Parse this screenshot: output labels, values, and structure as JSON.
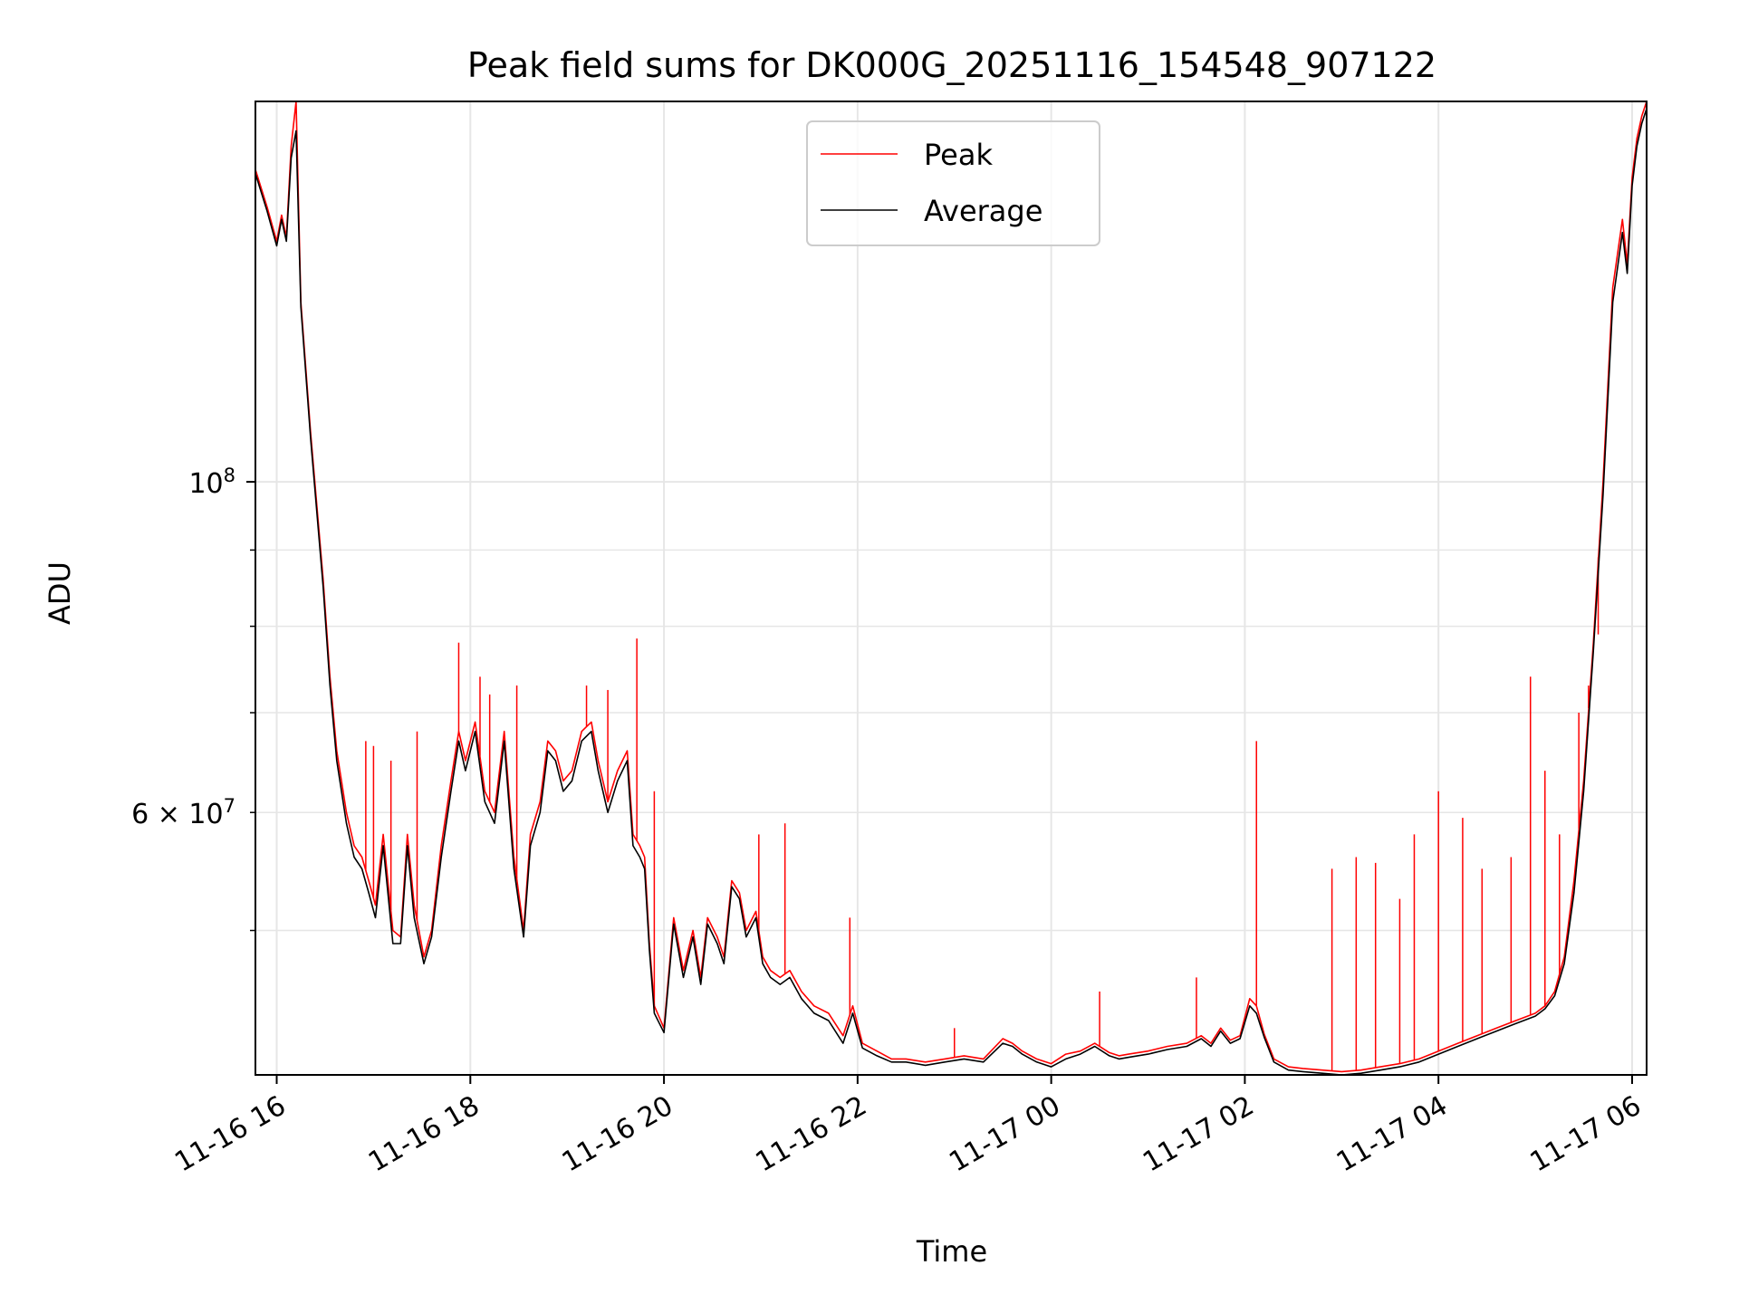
{
  "chart_data": {
    "type": "line",
    "title": "Peak field sums for DK000G_20251116_154548_907122",
    "xlabel": "Time",
    "ylabel": "ADU",
    "yscale": "log",
    "ylim": [
      40000000,
      180000000
    ],
    "xlim_hours": [
      15.78,
      30.15
    ],
    "grid": true,
    "legend_position": "top-center",
    "x_ticks": [
      {
        "value": 16,
        "label": "11-16 16"
      },
      {
        "value": 18,
        "label": "11-16 18"
      },
      {
        "value": 20,
        "label": "11-16 20"
      },
      {
        "value": 22,
        "label": "11-16 22"
      },
      {
        "value": 24,
        "label": "11-17 00"
      },
      {
        "value": 26,
        "label": "11-17 02"
      },
      {
        "value": 28,
        "label": "11-17 04"
      },
      {
        "value": 30,
        "label": "11-17 06"
      }
    ],
    "y_ticks_major": [
      {
        "value": 100000000,
        "base": "10",
        "exp": "8",
        "mant": ""
      }
    ],
    "y_ticks_minor": [
      {
        "value": 50000000,
        "label": ""
      },
      {
        "value": 60000000,
        "base": "10",
        "exp": "7",
        "mant": "6 × "
      },
      {
        "value": 70000000,
        "label": ""
      },
      {
        "value": 80000000,
        "label": ""
      },
      {
        "value": 90000000,
        "label": ""
      }
    ],
    "series": [
      {
        "name": "Peak",
        "color": "#ff0000",
        "x": [
          15.78,
          15.9,
          16.0,
          16.05,
          16.1,
          16.15,
          16.2,
          16.25,
          16.35,
          16.48,
          16.55,
          16.62,
          16.72,
          16.8,
          16.88,
          16.95,
          17.02,
          17.1,
          17.2,
          17.28,
          17.35,
          17.42,
          17.52,
          17.6,
          17.7,
          17.8,
          17.88,
          17.95,
          18.05,
          18.15,
          18.25,
          18.35,
          18.45,
          18.55,
          18.62,
          18.72,
          18.8,
          18.88,
          18.96,
          19.05,
          19.15,
          19.25,
          19.32,
          19.42,
          19.52,
          19.62,
          19.68,
          19.75,
          19.8,
          19.85,
          19.9,
          20.0,
          20.1,
          20.2,
          20.3,
          20.38,
          20.45,
          20.55,
          20.62,
          20.7,
          20.78,
          20.85,
          20.95,
          21.02,
          21.1,
          21.2,
          21.3,
          21.42,
          21.55,
          21.7,
          21.85,
          21.95,
          22.05,
          22.2,
          22.35,
          22.5,
          22.7,
          22.9,
          23.1,
          23.3,
          23.5,
          23.6,
          23.7,
          23.85,
          24.0,
          24.15,
          24.3,
          24.45,
          24.6,
          24.7,
          24.8,
          25.0,
          25.2,
          25.4,
          25.55,
          25.65,
          25.75,
          25.85,
          25.95,
          26.05,
          26.12,
          26.2,
          26.3,
          26.45,
          26.6,
          26.8,
          27.0,
          27.2,
          27.4,
          27.6,
          27.8,
          28.0,
          28.2,
          28.4,
          28.6,
          28.8,
          29.0,
          29.1,
          29.2,
          29.3,
          29.4,
          29.5,
          29.6,
          29.7,
          29.8,
          29.9,
          29.95,
          30.0,
          30.05,
          30.1,
          30.15
        ],
        "values": [
          162000000,
          153000000,
          145000000,
          151000000,
          146000000,
          168000000,
          180000000,
          132000000,
          108000000,
          86000000,
          74000000,
          66000000,
          60000000,
          57000000,
          56000000,
          54000000,
          52000000,
          58000000,
          50000000,
          49500000,
          58000000,
          52000000,
          48000000,
          50000000,
          57000000,
          63000000,
          68000000,
          65000000,
          69000000,
          62000000,
          60000000,
          68000000,
          56000000,
          50000000,
          58000000,
          61000000,
          67000000,
          66000000,
          63000000,
          64000000,
          68000000,
          69000000,
          65000000,
          61000000,
          64000000,
          66000000,
          58000000,
          57000000,
          56000000,
          49000000,
          44500000,
          43000000,
          51000000,
          47000000,
          50000000,
          46500000,
          51000000,
          49500000,
          48000000,
          54000000,
          53000000,
          50000000,
          51500000,
          48000000,
          47000000,
          46500000,
          47000000,
          45500000,
          44500000,
          44000000,
          42500000,
          44500000,
          42000000,
          41500000,
          41000000,
          41000000,
          40800000,
          41000000,
          41200000,
          41000000,
          42300000,
          42000000,
          41500000,
          41000000,
          40700000,
          41300000,
          41500000,
          42000000,
          41400000,
          41200000,
          41300000,
          41500000,
          41800000,
          42000000,
          42500000,
          42000000,
          43000000,
          42200000,
          42500000,
          45000000,
          44500000,
          42600000,
          41000000,
          40500000,
          40400000,
          40300000,
          40200000,
          40300000,
          40500000,
          40700000,
          41000000,
          41500000,
          42000000,
          42500000,
          43000000,
          43500000,
          44000000,
          44500000,
          45500000,
          48000000,
          54000000,
          63000000,
          78000000,
          100000000,
          135000000,
          150000000,
          140000000,
          160000000,
          170000000,
          176000000,
          180000000
        ]
      },
      {
        "name": "Average",
        "color": "#000000",
        "x": [
          15.78,
          15.9,
          16.0,
          16.05,
          16.1,
          16.15,
          16.2,
          16.25,
          16.35,
          16.48,
          16.55,
          16.62,
          16.72,
          16.8,
          16.88,
          16.95,
          17.02,
          17.1,
          17.2,
          17.28,
          17.35,
          17.42,
          17.52,
          17.6,
          17.7,
          17.8,
          17.88,
          17.95,
          18.05,
          18.15,
          18.25,
          18.35,
          18.45,
          18.55,
          18.62,
          18.72,
          18.8,
          18.88,
          18.96,
          19.05,
          19.15,
          19.25,
          19.32,
          19.42,
          19.52,
          19.62,
          19.68,
          19.75,
          19.8,
          19.85,
          19.9,
          20.0,
          20.1,
          20.2,
          20.3,
          20.38,
          20.45,
          20.55,
          20.62,
          20.7,
          20.78,
          20.85,
          20.95,
          21.02,
          21.1,
          21.2,
          21.3,
          21.42,
          21.55,
          21.7,
          21.85,
          21.95,
          22.05,
          22.2,
          22.35,
          22.5,
          22.7,
          22.9,
          23.1,
          23.3,
          23.5,
          23.6,
          23.7,
          23.85,
          24.0,
          24.15,
          24.3,
          24.45,
          24.6,
          24.7,
          24.8,
          25.0,
          25.2,
          25.4,
          25.55,
          25.65,
          25.75,
          25.85,
          25.95,
          26.05,
          26.12,
          26.2,
          26.3,
          26.45,
          26.6,
          26.8,
          27.0,
          27.2,
          27.4,
          27.6,
          27.8,
          28.0,
          28.2,
          28.4,
          28.6,
          28.8,
          29.0,
          29.1,
          29.2,
          29.3,
          29.4,
          29.5,
          29.6,
          29.7,
          29.8,
          29.9,
          29.95,
          30.0,
          30.05,
          30.1,
          30.15
        ],
        "values": [
          161000000,
          152000000,
          144000000,
          150000000,
          145000000,
          165000000,
          172000000,
          131000000,
          107000000,
          85000000,
          73000000,
          65000000,
          59000000,
          56000000,
          55000000,
          53000000,
          51000000,
          57000000,
          49000000,
          49000000,
          57000000,
          51000000,
          47500000,
          49500000,
          56000000,
          62000000,
          67000000,
          64000000,
          68000000,
          61000000,
          59000000,
          67000000,
          55000000,
          49500000,
          57000000,
          60000000,
          66000000,
          65000000,
          62000000,
          63000000,
          67000000,
          68000000,
          64000000,
          60000000,
          63000000,
          65000000,
          57000000,
          56000000,
          55000000,
          48500000,
          44000000,
          42700000,
          50500000,
          46500000,
          49500000,
          46000000,
          50500000,
          49000000,
          47500000,
          53500000,
          52500000,
          49500000,
          51000000,
          47500000,
          46500000,
          46000000,
          46500000,
          45000000,
          44000000,
          43500000,
          42000000,
          44000000,
          41700000,
          41200000,
          40800000,
          40800000,
          40600000,
          40800000,
          41000000,
          40800000,
          42000000,
          41800000,
          41300000,
          40800000,
          40500000,
          41000000,
          41300000,
          41800000,
          41200000,
          41000000,
          41100000,
          41300000,
          41600000,
          41800000,
          42300000,
          41800000,
          42800000,
          42000000,
          42300000,
          44500000,
          44000000,
          42400000,
          40800000,
          40300000,
          40200000,
          40100000,
          40000000,
          40100000,
          40300000,
          40500000,
          40800000,
          41300000,
          41800000,
          42300000,
          42800000,
          43300000,
          43800000,
          44300000,
          45200000,
          47500000,
          53000000,
          62000000,
          77000000,
          98000000,
          132000000,
          147000000,
          138000000,
          158000000,
          168000000,
          174000000,
          178000000
        ]
      }
    ],
    "spikes": [
      {
        "x": 16.92,
        "value": 67000000
      },
      {
        "x": 17.0,
        "value": 66500000
      },
      {
        "x": 17.18,
        "value": 65000000
      },
      {
        "x": 17.45,
        "value": 68000000
      },
      {
        "x": 17.88,
        "value": 78000000
      },
      {
        "x": 18.1,
        "value": 74000000
      },
      {
        "x": 18.2,
        "value": 72000000
      },
      {
        "x": 18.48,
        "value": 73000000
      },
      {
        "x": 19.2,
        "value": 73000000
      },
      {
        "x": 19.42,
        "value": 72500000
      },
      {
        "x": 19.72,
        "value": 78500000
      },
      {
        "x": 19.9,
        "value": 62000000
      },
      {
        "x": 20.98,
        "value": 58000000
      },
      {
        "x": 21.25,
        "value": 59000000
      },
      {
        "x": 21.92,
        "value": 51000000
      },
      {
        "x": 23.0,
        "value": 43000000
      },
      {
        "x": 24.5,
        "value": 45500000
      },
      {
        "x": 25.5,
        "value": 46500000
      },
      {
        "x": 26.12,
        "value": 67000000
      },
      {
        "x": 26.9,
        "value": 55000000
      },
      {
        "x": 27.15,
        "value": 56000000
      },
      {
        "x": 27.35,
        "value": 55500000
      },
      {
        "x": 27.6,
        "value": 52500000
      },
      {
        "x": 27.75,
        "value": 58000000
      },
      {
        "x": 28.0,
        "value": 62000000
      },
      {
        "x": 28.25,
        "value": 59500000
      },
      {
        "x": 28.45,
        "value": 55000000
      },
      {
        "x": 28.75,
        "value": 56000000
      },
      {
        "x": 28.95,
        "value": 74000000
      },
      {
        "x": 29.1,
        "value": 64000000
      },
      {
        "x": 29.25,
        "value": 58000000
      },
      {
        "x": 29.45,
        "value": 70000000
      },
      {
        "x": 29.55,
        "value": 73000000
      },
      {
        "x": 29.65,
        "value": 79000000
      }
    ]
  },
  "colors": {
    "peak": "#ff0000",
    "average": "#000000",
    "grid": "#e6e6e6",
    "legend_border": "#cccccc"
  }
}
